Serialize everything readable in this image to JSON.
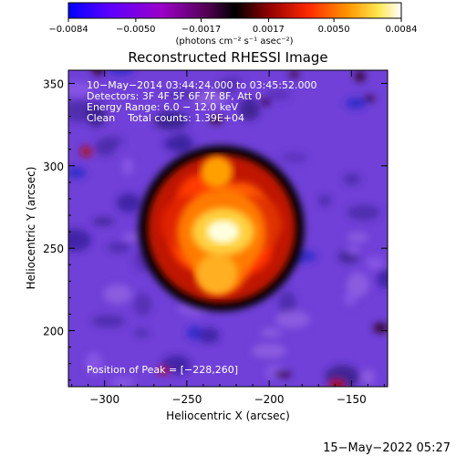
{
  "chart_data": {
    "type": "heatmap",
    "title": "Reconstructed RHESSI Image",
    "xlabel": "Heliocentric X (arcsec)",
    "ylabel": "Heliocentric Y (arcsec)",
    "xlim": [
      -322,
      -128
    ],
    "ylim": [
      166,
      358
    ],
    "x_ticks": [
      -300,
      -250,
      -200,
      -150
    ],
    "y_ticks": [
      200,
      250,
      300,
      350
    ],
    "x_tick_labels": [
      "−300",
      "−250",
      "−200",
      "−150"
    ],
    "y_tick_labels": [
      "200",
      "250",
      "300",
      "350"
    ],
    "grid": false,
    "colorbar": {
      "range": [
        -0.0084,
        0.0084
      ],
      "ticks": [
        -0.0084,
        -0.005,
        -0.0017,
        0.0017,
        0.005,
        0.0084
      ],
      "tick_labels": [
        "−0.0084",
        "−0.0050",
        "−0.0017",
        "0.0017",
        "0.0050",
        "0.0084"
      ],
      "unit": "(photons cm⁻² s⁻¹ asec⁻²)",
      "colormap": [
        "#0000ff",
        "#5a00ff",
        "#9b00c8",
        "#500050",
        "#000000",
        "#8c0000",
        "#ff2800",
        "#ff9600",
        "#ffe650",
        "#ffffff"
      ]
    },
    "annotations": [
      "10−May−2014 03:44:24.000 to 03:45:52.000",
      "Detectors: 3F 4F 5F 6F 7F 8F, Att 0",
      "Energy Range: 6.0 − 12.0 keV",
      "Clean    Total counts: 1.39E+04",
      "Position of Peak = [−228,260]"
    ],
    "peak_position": [
      -228,
      260
    ],
    "source": {
      "center": [
        -229,
        262
      ],
      "radius_arcsec": 45
    }
  },
  "footer": {
    "timestamp": "15−May−2022 05:27"
  }
}
